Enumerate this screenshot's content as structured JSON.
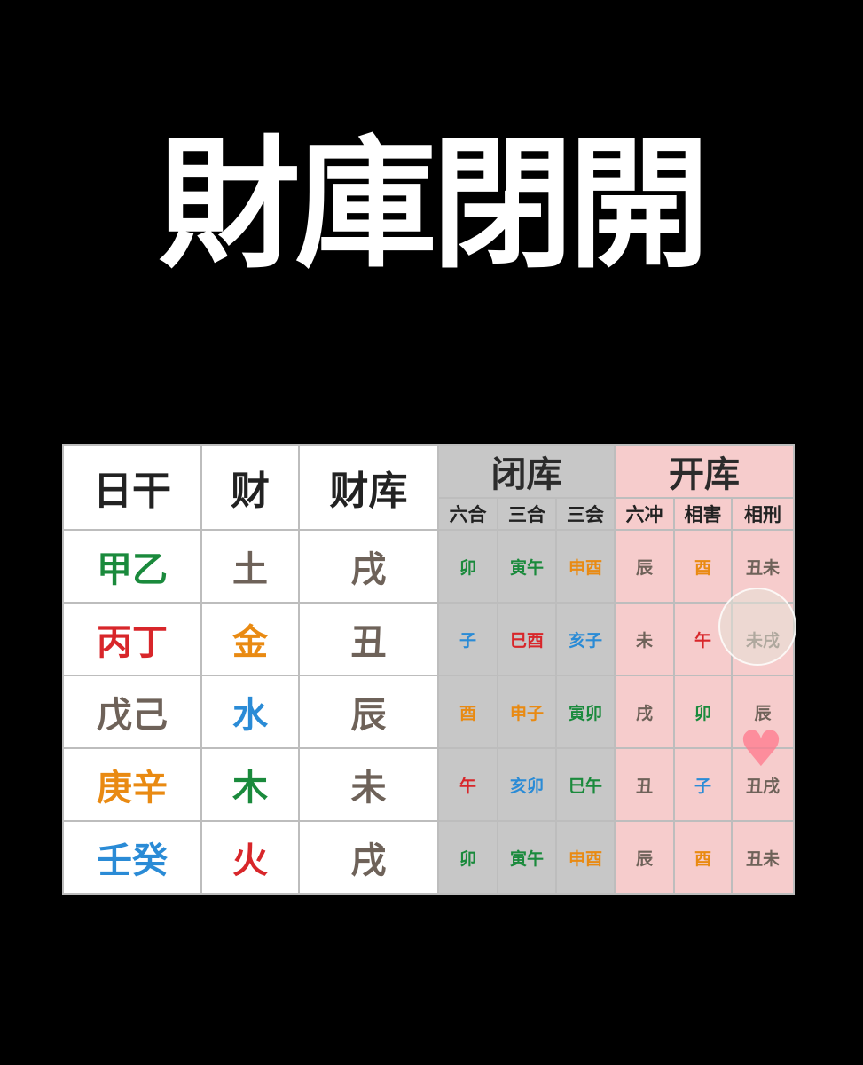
{
  "title": "財庫閉開",
  "colors": {
    "green": "#1a8a3c",
    "red": "#d8262a",
    "gray": "#6e6259",
    "orange": "#e98a12",
    "blue": "#2a8bd6",
    "close_bg": "#c7c7c7",
    "open_bg": "#f6cccc"
  },
  "table": {
    "headers": {
      "day_stem": "日干",
      "wealth": "财",
      "wealth_vault": "财库"
    },
    "groups": {
      "close": "闭库",
      "open": "开库"
    },
    "subheaders": [
      "六合",
      "三合",
      "三会",
      "六冲",
      "相害",
      "相刑"
    ],
    "rows": [
      {
        "stem": "甲乙",
        "stem_color": "green",
        "wealth": "土",
        "wealth_color": "gray",
        "vault": "戌",
        "cells": [
          {
            "text": "卯",
            "color": "green"
          },
          {
            "text": "寅午",
            "color": "green"
          },
          {
            "text": "申酉",
            "color": "orange"
          },
          {
            "text": "辰",
            "color": "gray"
          },
          {
            "text": "酉",
            "color": "orange"
          },
          {
            "text": "丑未",
            "color": "gray"
          }
        ]
      },
      {
        "stem": "丙丁",
        "stem_color": "red",
        "wealth": "金",
        "wealth_color": "orange",
        "vault": "丑",
        "cells": [
          {
            "text": "子",
            "color": "blue"
          },
          {
            "text": "巳酉",
            "color": "red"
          },
          {
            "text": "亥子",
            "color": "blue"
          },
          {
            "text": "未",
            "color": "gray"
          },
          {
            "text": "午",
            "color": "red"
          },
          {
            "text": "未戌",
            "color": "gray"
          }
        ]
      },
      {
        "stem": "戊己",
        "stem_color": "gray",
        "wealth": "水",
        "wealth_color": "blue",
        "vault": "辰",
        "cells": [
          {
            "text": "酉",
            "color": "orange"
          },
          {
            "text": "申子",
            "color": "orange"
          },
          {
            "text": "寅卯",
            "color": "green"
          },
          {
            "text": "戌",
            "color": "gray"
          },
          {
            "text": "卯",
            "color": "green"
          },
          {
            "text": "辰",
            "color": "gray"
          }
        ]
      },
      {
        "stem": "庚辛",
        "stem_color": "orange",
        "wealth": "木",
        "wealth_color": "green",
        "vault": "未",
        "cells": [
          {
            "text": "午",
            "color": "red"
          },
          {
            "text": "亥卯",
            "color": "blue"
          },
          {
            "text": "巳午",
            "color": "green"
          },
          {
            "text": "丑",
            "color": "gray"
          },
          {
            "text": "子",
            "color": "blue"
          },
          {
            "text": "丑戌",
            "color": "gray"
          }
        ]
      },
      {
        "stem": "壬癸",
        "stem_color": "blue",
        "wealth": "火",
        "wealth_color": "red",
        "vault": "戌",
        "cells": [
          {
            "text": "卯",
            "color": "green"
          },
          {
            "text": "寅午",
            "color": "green"
          },
          {
            "text": "申酉",
            "color": "orange"
          },
          {
            "text": "辰",
            "color": "gray"
          },
          {
            "text": "酉",
            "color": "orange"
          },
          {
            "text": "丑未",
            "color": "gray"
          }
        ]
      }
    ]
  }
}
